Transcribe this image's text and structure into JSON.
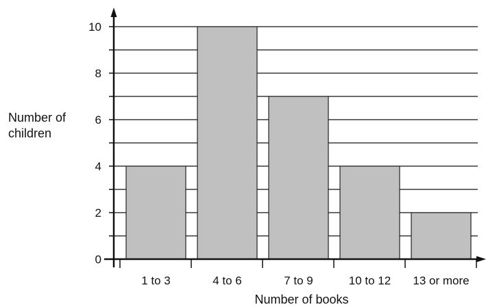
{
  "chart_data": {
    "type": "bar",
    "title": "",
    "xlabel": "Number of books",
    "ylabel_lines": [
      "Number of",
      "children"
    ],
    "categories": [
      "1 to 3",
      "4 to 6",
      "7 to 9",
      "10 to 12",
      "13 or more"
    ],
    "values": [
      4,
      10,
      7,
      4,
      2
    ],
    "ylim": [
      0,
      10
    ],
    "yticks": [
      0,
      2,
      4,
      6,
      8,
      10
    ],
    "minor_grid_step": 1,
    "grid": true,
    "legend": "none",
    "colors": {
      "bar_fill": "#c0c0c0",
      "bar_stroke": "#222222",
      "grid": "#111111",
      "axis": "#111111"
    }
  }
}
